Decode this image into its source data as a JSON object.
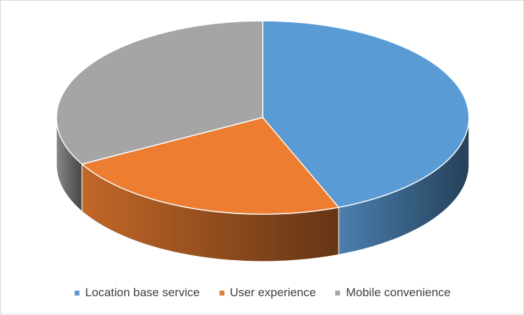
{
  "chart_data": {
    "type": "pie",
    "style": "3d",
    "title": "",
    "legend_position": "bottom",
    "categories": [
      "Location base service",
      "User experience",
      "Mobile convenience"
    ],
    "values": [
      44,
      23,
      33
    ],
    "colors": [
      "#5b9bd5",
      "#ed7d31",
      "#a5a5a5"
    ]
  }
}
